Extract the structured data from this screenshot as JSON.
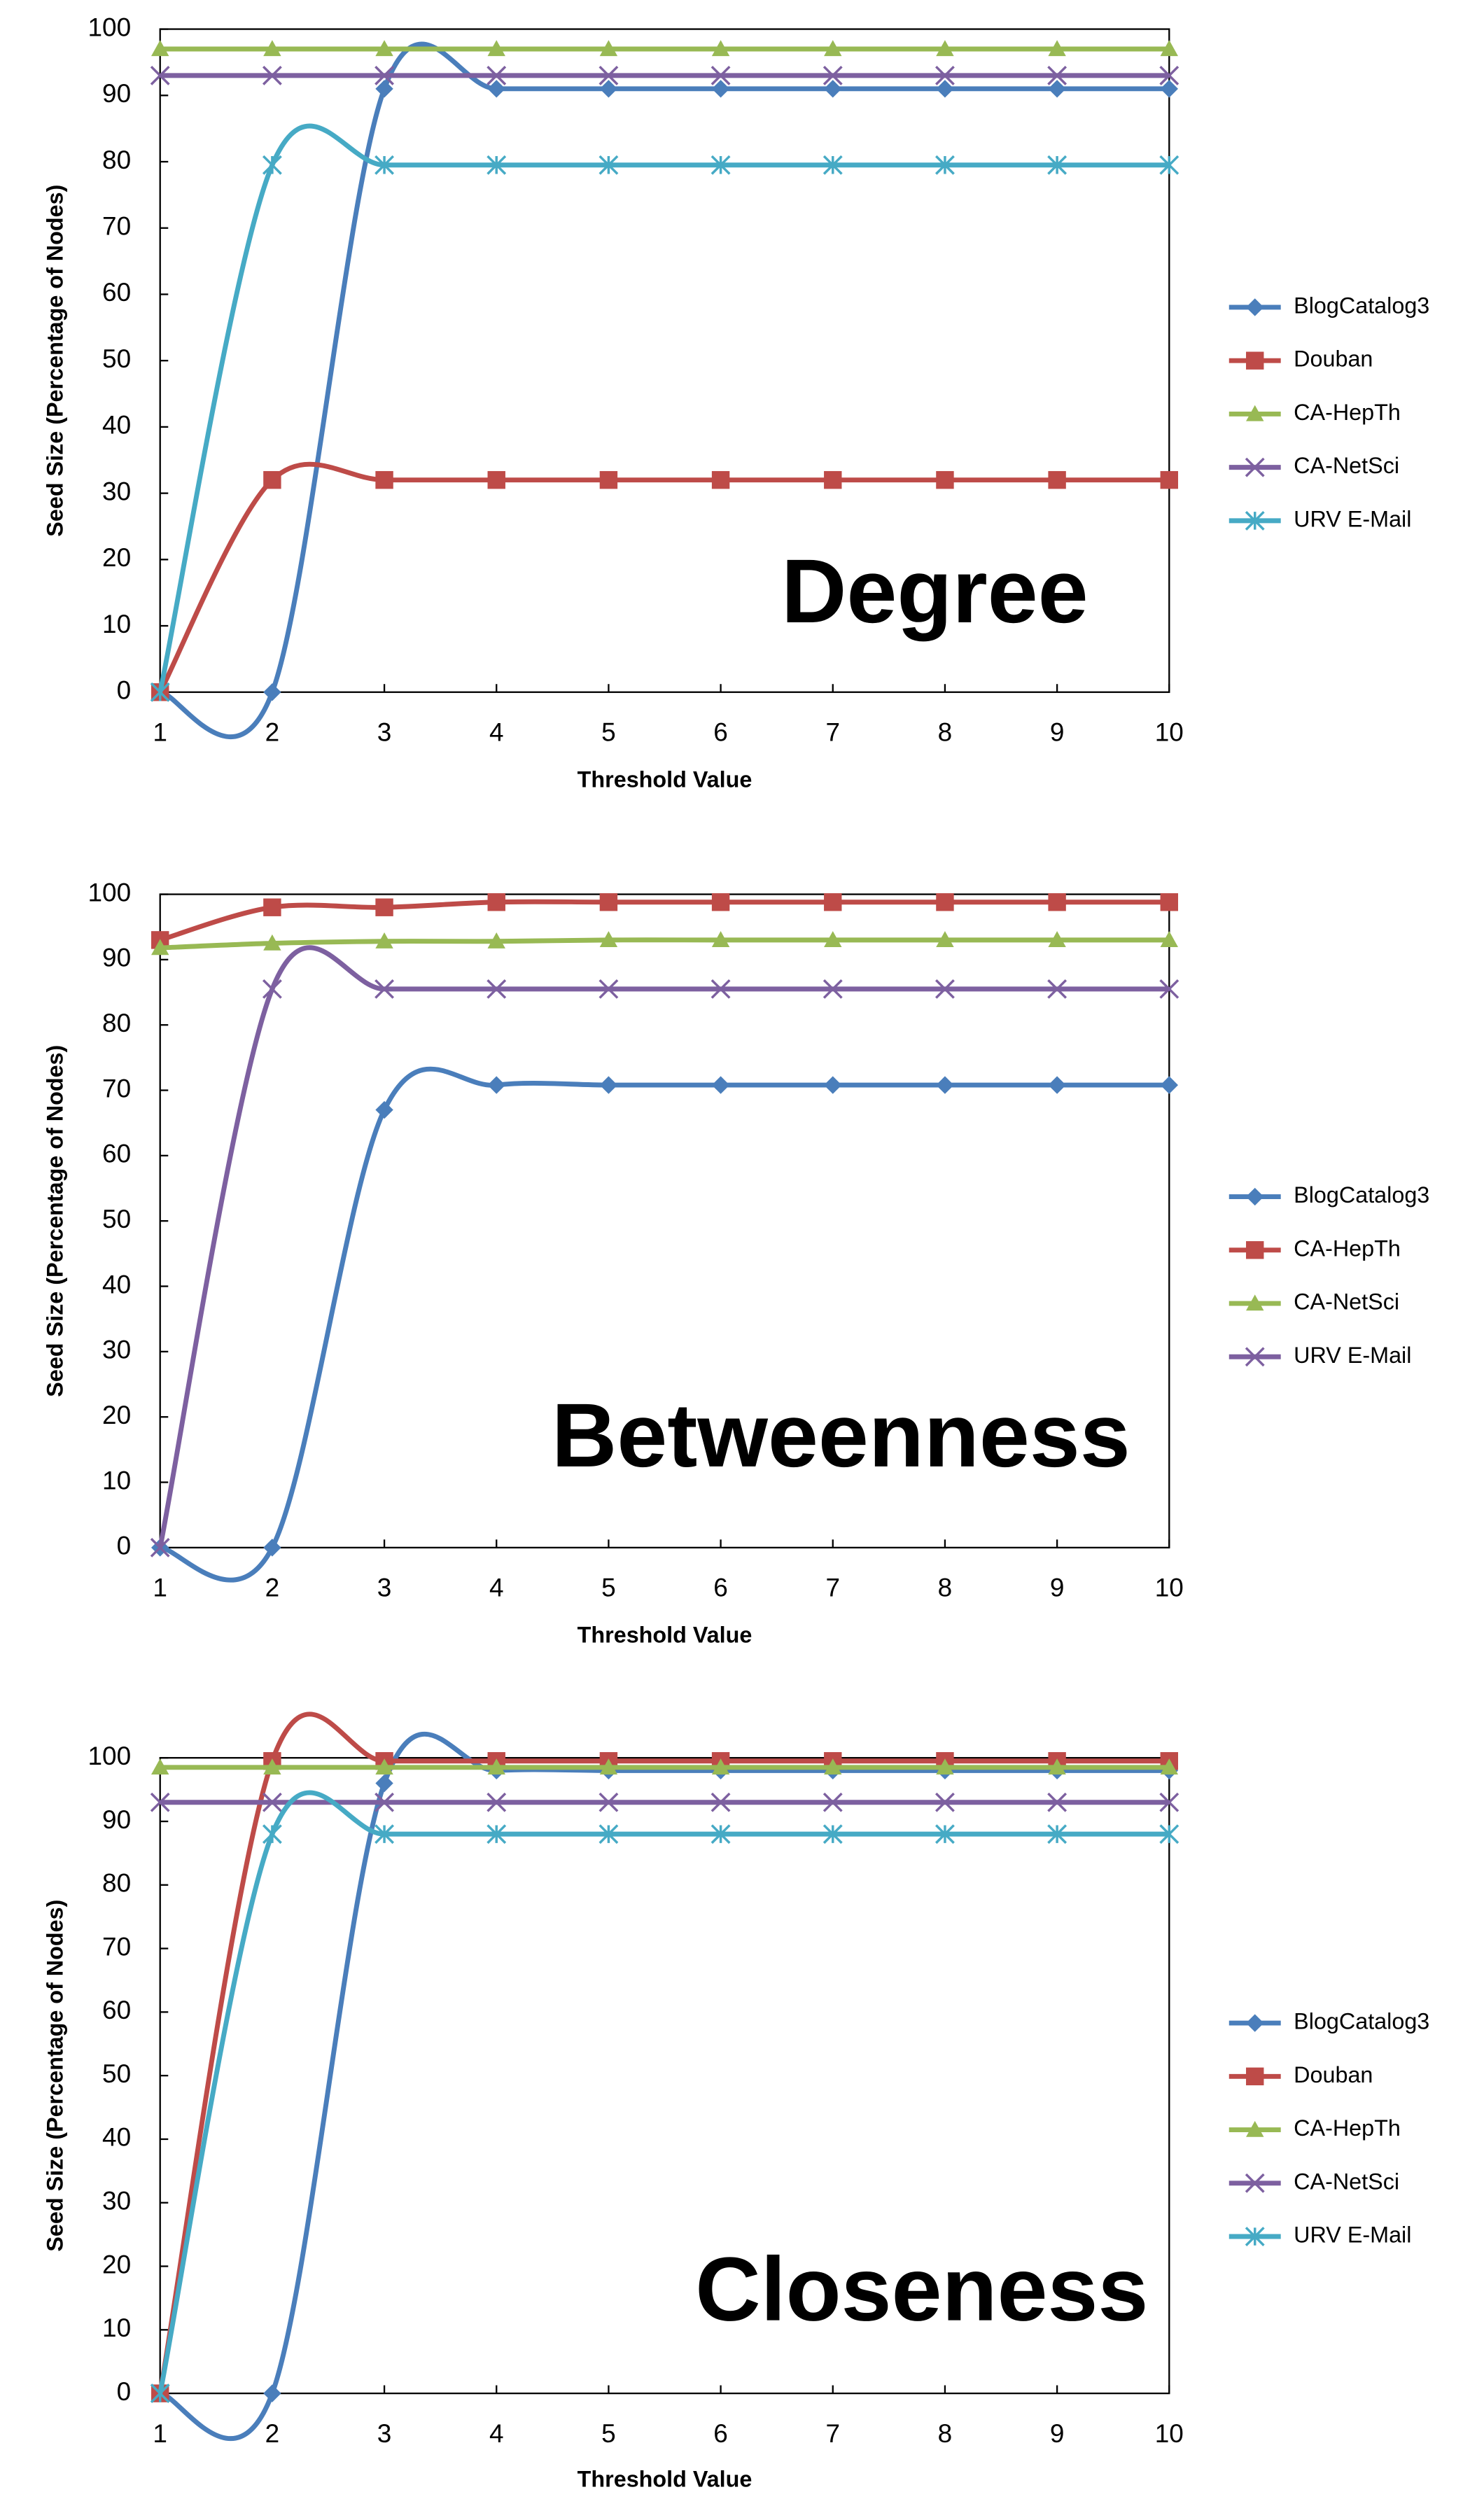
{
  "chart_data": [
    {
      "type": "line",
      "annotation": "Degree",
      "x_label": "Threshold Value",
      "y_label": "Seed Size (Percentage of Nodes)",
      "x": [
        1,
        2,
        3,
        4,
        5,
        6,
        7,
        8,
        9,
        10
      ],
      "xlim": [
        1,
        10
      ],
      "xticks": [
        1,
        2,
        3,
        4,
        5,
        6,
        7,
        8,
        9,
        10
      ],
      "ylim": [
        0,
        100
      ],
      "yticks": [
        0,
        10,
        20,
        30,
        40,
        50,
        60,
        70,
        80,
        90,
        100
      ],
      "smooth": true,
      "series": [
        {
          "name": "BlogCatalog3",
          "color": "#4a7ebb",
          "marker": "diamond",
          "values": [
            0,
            0,
            91,
            91,
            91,
            91,
            91,
            91,
            91,
            91
          ]
        },
        {
          "name": "Douban",
          "color": "#be4b48",
          "marker": "square",
          "values": [
            0,
            32,
            32,
            32,
            32,
            32,
            32,
            32,
            32,
            32
          ]
        },
        {
          "name": "CA-HepTh",
          "color": "#98b954",
          "marker": "triangle",
          "values": [
            97,
            97,
            97,
            97,
            97,
            97,
            97,
            97,
            97,
            97
          ]
        },
        {
          "name": "CA-NetSci",
          "color": "#7d60a0",
          "marker": "x",
          "values": [
            93,
            93,
            93,
            93,
            93,
            93,
            93,
            93,
            93,
            93
          ]
        },
        {
          "name": "URV E-Mail",
          "color": "#46aac5",
          "marker": "star",
          "values": [
            0,
            79.5,
            79.5,
            79.5,
            79.5,
            79.5,
            79.5,
            79.5,
            79.5,
            79.5
          ]
        }
      ]
    },
    {
      "type": "line",
      "annotation": "Betweenness",
      "x_label": "Threshold Value",
      "y_label": "Seed Size (Percentage of Nodes)",
      "x": [
        1,
        2,
        3,
        4,
        5,
        6,
        7,
        8,
        9,
        10
      ],
      "xlim": [
        1,
        10
      ],
      "xticks": [
        1,
        2,
        3,
        4,
        5,
        6,
        7,
        8,
        9,
        10
      ],
      "ylim": [
        0,
        100
      ],
      "yticks": [
        0,
        10,
        20,
        30,
        40,
        50,
        60,
        70,
        80,
        90,
        100
      ],
      "smooth": true,
      "series": [
        {
          "name": "BlogCatalog3",
          "color": "#4a7ebb",
          "marker": "diamond",
          "values": [
            0,
            0,
            67,
            70.8,
            70.8,
            70.8,
            70.8,
            70.8,
            70.8,
            70.8
          ]
        },
        {
          "name": "CA-HepTh",
          "color": "#be4b48",
          "marker": "square",
          "values": [
            93,
            98,
            98,
            98.8,
            98.8,
            98.8,
            98.8,
            98.8,
            98.8,
            98.8
          ]
        },
        {
          "name": "CA-NetSci",
          "color": "#98b954",
          "marker": "triangle",
          "values": [
            91.8,
            92.5,
            92.8,
            92.8,
            93,
            93,
            93,
            93,
            93,
            93
          ]
        },
        {
          "name": "URV E-Mail",
          "color": "#7d60a0",
          "marker": "x",
          "values": [
            0,
            85.5,
            85.5,
            85.5,
            85.5,
            85.5,
            85.5,
            85.5,
            85.5,
            85.5
          ]
        }
      ]
    },
    {
      "type": "line",
      "annotation": "Closeness",
      "x_label": "Threshold Value",
      "y_label": "Seed Size (Percentage of Nodes)",
      "x": [
        1,
        2,
        3,
        4,
        5,
        6,
        7,
        8,
        9,
        10
      ],
      "xlim": [
        1,
        10
      ],
      "xticks": [
        1,
        2,
        3,
        4,
        5,
        6,
        7,
        8,
        9,
        10
      ],
      "ylim": [
        0,
        100
      ],
      "yticks": [
        0,
        10,
        20,
        30,
        40,
        50,
        60,
        70,
        80,
        90,
        100
      ],
      "smooth": true,
      "series": [
        {
          "name": "BlogCatalog3",
          "color": "#4a7ebb",
          "marker": "diamond",
          "values": [
            0,
            0,
            96,
            98,
            98,
            98,
            98,
            98,
            98,
            98
          ]
        },
        {
          "name": "Douban",
          "color": "#be4b48",
          "marker": "square",
          "values": [
            0,
            99.5,
            99.5,
            99.5,
            99.5,
            99.5,
            99.5,
            99.5,
            99.5,
            99.5
          ]
        },
        {
          "name": "CA-HepTh",
          "color": "#98b954",
          "marker": "triangle",
          "values": [
            98.5,
            98.5,
            98.5,
            98.5,
            98.5,
            98.5,
            98.5,
            98.5,
            98.5,
            98.5
          ]
        },
        {
          "name": "CA-NetSci",
          "color": "#7d60a0",
          "marker": "x",
          "values": [
            93,
            93,
            93,
            93,
            93,
            93,
            93,
            93,
            93,
            93
          ]
        },
        {
          "name": "URV E-Mail",
          "color": "#46aac5",
          "marker": "star",
          "values": [
            0,
            88,
            88,
            88,
            88,
            88,
            88,
            88,
            88,
            88
          ]
        }
      ]
    }
  ]
}
